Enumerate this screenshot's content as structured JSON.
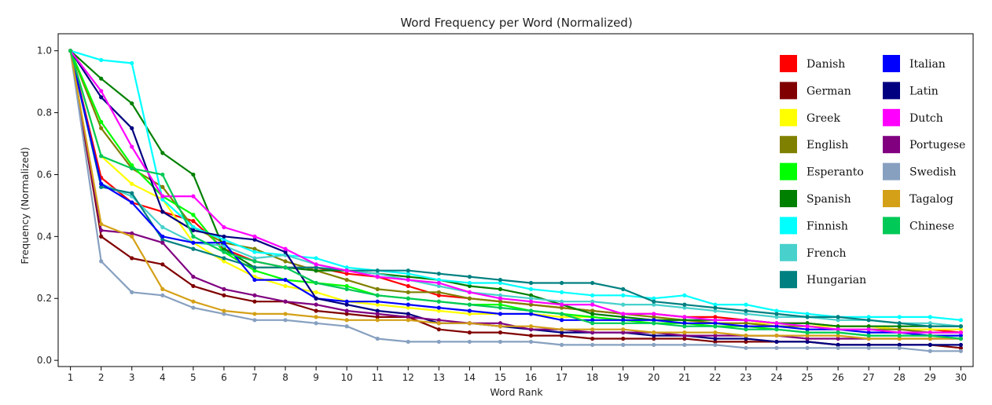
{
  "chart_data": {
    "type": "line",
    "title": "Word Frequency per Word (Normalized)",
    "xlabel": "Word Rank",
    "ylabel": "Frequency (Normalized)",
    "x": [
      1,
      2,
      3,
      4,
      5,
      6,
      7,
      8,
      9,
      10,
      11,
      12,
      13,
      14,
      15,
      16,
      17,
      18,
      19,
      20,
      21,
      22,
      23,
      24,
      25,
      26,
      27,
      28,
      29,
      30
    ],
    "xlim": [
      0.6,
      30.4
    ],
    "ylim": [
      -0.02,
      1.055
    ],
    "yticks": [
      0.0,
      0.2,
      0.4,
      0.6,
      0.8,
      1.0
    ],
    "ytick_labels": [
      "0.0",
      "0.2",
      "0.4",
      "0.6",
      "0.8",
      "1.0"
    ],
    "xtick_labels": [
      "1",
      "2",
      "3",
      "4",
      "5",
      "6",
      "7",
      "8",
      "9",
      "10",
      "11",
      "12",
      "13",
      "14",
      "15",
      "16",
      "17",
      "18",
      "19",
      "20",
      "21",
      "22",
      "23",
      "24",
      "25",
      "26",
      "27",
      "28",
      "29",
      "30"
    ],
    "grid": false,
    "legend_position": "top-right",
    "series": [
      {
        "name": "Danish",
        "color": "#ff0000",
        "values": [
          1.0,
          0.59,
          0.51,
          0.48,
          0.45,
          0.36,
          0.32,
          0.3,
          0.3,
          0.28,
          0.27,
          0.24,
          0.21,
          0.2,
          0.19,
          0.18,
          0.17,
          0.16,
          0.15,
          0.15,
          0.14,
          0.14,
          0.13,
          0.12,
          0.12,
          0.11,
          0.11,
          0.1,
          0.1,
          0.09
        ]
      },
      {
        "name": "German",
        "color": "#800000",
        "values": [
          1.0,
          0.4,
          0.33,
          0.31,
          0.24,
          0.21,
          0.19,
          0.19,
          0.16,
          0.15,
          0.14,
          0.14,
          0.1,
          0.09,
          0.09,
          0.08,
          0.08,
          0.07,
          0.07,
          0.07,
          0.07,
          0.06,
          0.06,
          0.06,
          0.06,
          0.05,
          0.05,
          0.05,
          0.05,
          0.04
        ]
      },
      {
        "name": "Greek",
        "color": "#ffff00",
        "values": [
          1.0,
          0.66,
          0.57,
          0.52,
          0.38,
          0.32,
          0.27,
          0.24,
          0.22,
          0.19,
          0.18,
          0.17,
          0.16,
          0.15,
          0.15,
          0.15,
          0.14,
          0.14,
          0.13,
          0.13,
          0.13,
          0.12,
          0.12,
          0.12,
          0.11,
          0.11,
          0.11,
          0.1,
          0.1,
          0.1
        ]
      },
      {
        "name": "English",
        "color": "#808000",
        "values": [
          1.0,
          0.75,
          0.62,
          0.56,
          0.43,
          0.38,
          0.36,
          0.32,
          0.29,
          0.26,
          0.23,
          0.22,
          0.22,
          0.2,
          0.19,
          0.18,
          0.17,
          0.16,
          0.15,
          0.14,
          0.13,
          0.12,
          0.12,
          0.11,
          0.11,
          0.1,
          0.1,
          0.1,
          0.09,
          0.09
        ]
      },
      {
        "name": "Esperanto",
        "color": "#00ff00",
        "values": [
          1.0,
          0.77,
          0.63,
          0.53,
          0.47,
          0.35,
          0.29,
          0.26,
          0.25,
          0.24,
          0.21,
          0.2,
          0.19,
          0.18,
          0.18,
          0.16,
          0.15,
          0.14,
          0.13,
          0.12,
          0.12,
          0.11,
          0.11,
          0.1,
          0.09,
          0.09,
          0.08,
          0.08,
          0.08,
          0.07
        ]
      },
      {
        "name": "Spanish",
        "color": "#008000",
        "values": [
          1.0,
          0.91,
          0.83,
          0.67,
          0.6,
          0.36,
          0.3,
          0.3,
          0.29,
          0.29,
          0.28,
          0.27,
          0.26,
          0.24,
          0.23,
          0.21,
          0.18,
          0.15,
          0.14,
          0.13,
          0.13,
          0.13,
          0.13,
          0.12,
          0.12,
          0.11,
          0.11,
          0.11,
          0.11,
          0.11
        ]
      },
      {
        "name": "Finnish",
        "color": "#00ffff",
        "values": [
          1.0,
          0.97,
          0.96,
          0.52,
          0.43,
          0.39,
          0.35,
          0.34,
          0.33,
          0.3,
          0.29,
          0.28,
          0.26,
          0.25,
          0.25,
          0.23,
          0.22,
          0.21,
          0.21,
          0.2,
          0.21,
          0.18,
          0.18,
          0.16,
          0.15,
          0.14,
          0.14,
          0.14,
          0.14,
          0.13
        ]
      },
      {
        "name": "French",
        "color": "#48d1cc",
        "values": [
          1.0,
          0.57,
          0.53,
          0.43,
          0.38,
          0.37,
          0.33,
          0.34,
          0.31,
          0.29,
          0.28,
          0.26,
          0.24,
          0.22,
          0.21,
          0.2,
          0.19,
          0.19,
          0.18,
          0.18,
          0.17,
          0.16,
          0.15,
          0.14,
          0.14,
          0.13,
          0.13,
          0.12,
          0.12,
          0.11
        ]
      },
      {
        "name": "Hungarian",
        "color": "#008080",
        "values": [
          1.0,
          0.56,
          0.54,
          0.39,
          0.36,
          0.33,
          0.3,
          0.3,
          0.3,
          0.29,
          0.29,
          0.29,
          0.28,
          0.27,
          0.26,
          0.25,
          0.25,
          0.25,
          0.23,
          0.19,
          0.18,
          0.17,
          0.16,
          0.15,
          0.14,
          0.14,
          0.13,
          0.12,
          0.11,
          0.11
        ]
      },
      {
        "name": "Italian",
        "color": "#0000ff",
        "values": [
          1.0,
          0.57,
          0.51,
          0.4,
          0.38,
          0.38,
          0.26,
          0.26,
          0.2,
          0.19,
          0.19,
          0.18,
          0.17,
          0.16,
          0.15,
          0.15,
          0.13,
          0.13,
          0.13,
          0.13,
          0.12,
          0.12,
          0.11,
          0.11,
          0.1,
          0.1,
          0.09,
          0.09,
          0.08,
          0.08
        ]
      },
      {
        "name": "Latin",
        "color": "#000080",
        "values": [
          1.0,
          0.85,
          0.75,
          0.48,
          0.42,
          0.4,
          0.39,
          0.35,
          0.2,
          0.18,
          0.16,
          0.15,
          0.12,
          0.12,
          0.11,
          0.1,
          0.09,
          0.09,
          0.09,
          0.08,
          0.08,
          0.07,
          0.07,
          0.06,
          0.06,
          0.05,
          0.05,
          0.05,
          0.05,
          0.05
        ]
      },
      {
        "name": "Dutch",
        "color": "#ff00ff",
        "values": [
          1.0,
          0.87,
          0.69,
          0.53,
          0.53,
          0.43,
          0.4,
          0.36,
          0.31,
          0.29,
          0.27,
          0.26,
          0.25,
          0.22,
          0.2,
          0.19,
          0.18,
          0.18,
          0.15,
          0.15,
          0.14,
          0.13,
          0.13,
          0.12,
          0.11,
          0.1,
          0.1,
          0.09,
          0.09,
          0.09
        ]
      },
      {
        "name": "Portugese",
        "color": "#800080",
        "values": [
          1.0,
          0.42,
          0.41,
          0.38,
          0.27,
          0.23,
          0.21,
          0.19,
          0.18,
          0.16,
          0.15,
          0.14,
          0.13,
          0.12,
          0.12,
          0.1,
          0.1,
          0.09,
          0.09,
          0.09,
          0.08,
          0.08,
          0.08,
          0.08,
          0.07,
          0.07,
          0.07,
          0.07,
          0.07,
          0.07
        ]
      },
      {
        "name": "Swedish",
        "color": "#87a0c0",
        "values": [
          1.0,
          0.32,
          0.22,
          0.21,
          0.17,
          0.15,
          0.13,
          0.13,
          0.12,
          0.11,
          0.07,
          0.06,
          0.06,
          0.06,
          0.06,
          0.06,
          0.05,
          0.05,
          0.05,
          0.05,
          0.05,
          0.05,
          0.04,
          0.04,
          0.04,
          0.04,
          0.04,
          0.04,
          0.03,
          0.03
        ]
      },
      {
        "name": "Tagalog",
        "color": "#d4a017",
        "values": [
          1.0,
          0.44,
          0.4,
          0.23,
          0.19,
          0.16,
          0.15,
          0.15,
          0.14,
          0.13,
          0.13,
          0.13,
          0.12,
          0.12,
          0.11,
          0.11,
          0.1,
          0.1,
          0.1,
          0.09,
          0.09,
          0.09,
          0.08,
          0.08,
          0.08,
          0.08,
          0.07,
          0.07,
          0.07,
          0.07
        ]
      },
      {
        "name": "Chinese",
        "color": "#00c957",
        "values": [
          1.0,
          0.66,
          0.62,
          0.6,
          0.4,
          0.35,
          0.32,
          0.3,
          0.25,
          0.23,
          0.21,
          0.2,
          0.19,
          0.18,
          0.17,
          0.16,
          0.15,
          0.12,
          0.12,
          0.12,
          0.11,
          0.11,
          0.1,
          0.1,
          0.09,
          0.09,
          0.08,
          0.08,
          0.08,
          0.07
        ]
      }
    ]
  }
}
